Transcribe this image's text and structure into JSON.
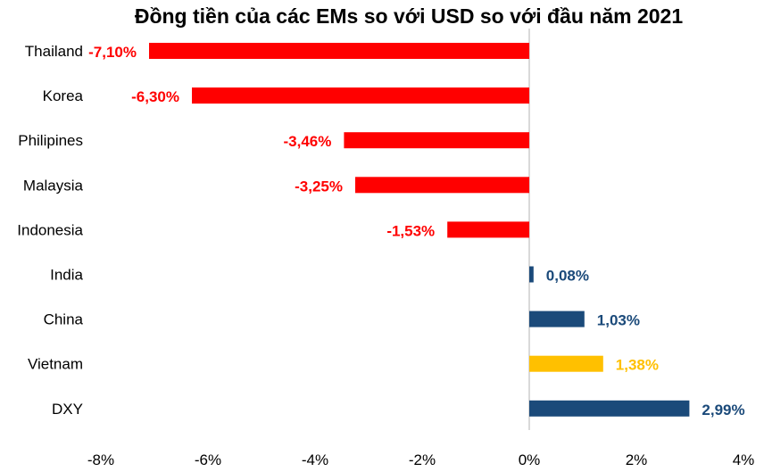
{
  "chart_data": {
    "type": "bar",
    "orientation": "horizontal",
    "title": "Đồng tiền của các EMs so với USD so với đầu năm 2021",
    "categories": [
      "Thailand",
      "Korea",
      "Philipines",
      "Malaysia",
      "Indonesia",
      "India",
      "China",
      "Vietnam",
      "DXY"
    ],
    "values": [
      -7.1,
      -6.3,
      -3.46,
      -3.25,
      -1.53,
      0.08,
      1.03,
      1.38,
      2.99
    ],
    "data_labels": [
      "-7,10%",
      "-6,30%",
      "-3,46%",
      "-3,25%",
      "-1,53%",
      "0,08%",
      "1,03%",
      "1,38%",
      "2,99%"
    ],
    "bar_colors": [
      "#FF0000",
      "#FF0000",
      "#FF0000",
      "#FF0000",
      "#FF0000",
      "#1B4A7A",
      "#1B4A7A",
      "#FFC000",
      "#1B4A7A"
    ],
    "xlim": [
      -8,
      4
    ],
    "x_ticks": [
      -8,
      -6,
      -4,
      -2,
      0,
      2,
      4
    ],
    "x_tick_labels": [
      "-8%",
      "-6%",
      "-4%",
      "-2%",
      "0%",
      "2%",
      "4%"
    ],
    "xlabel": "",
    "ylabel": "",
    "grid": false,
    "legend": "none"
  }
}
